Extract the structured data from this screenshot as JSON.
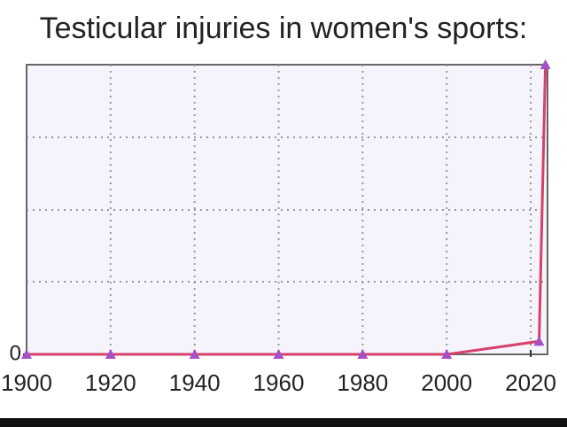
{
  "chart_data": {
    "type": "line",
    "title": "Testicular injuries in women's sports:",
    "x": [
      1900,
      1920,
      1940,
      1960,
      1980,
      2000,
      2022,
      2023.5
    ],
    "values": [
      0,
      0,
      0,
      0,
      0,
      0,
      0.18,
      4
    ],
    "color": "#d6406a",
    "marker_color": "#a550c8",
    "xlim": [
      1900,
      2024
    ],
    "xticks": [
      1900,
      1920,
      1940,
      1960,
      1980,
      2000,
      2020
    ],
    "ylim": [
      0,
      4
    ],
    "yticks": [
      0
    ],
    "grid": true
  }
}
